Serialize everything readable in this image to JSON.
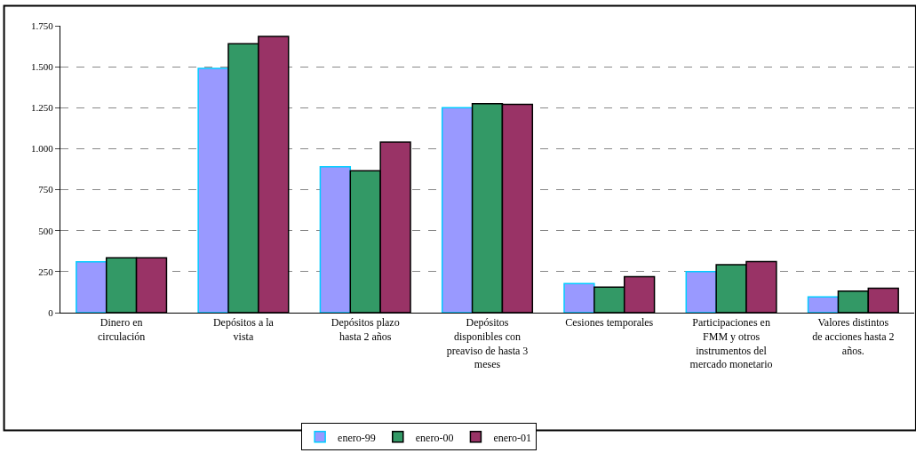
{
  "chart_data": {
    "type": "bar",
    "categories": [
      "Dinero en circulación",
      "Depósitos a la vista",
      "Depósitos plazo hasta 2 años",
      "Depósitos disponibles con preaviso de hasta 3 meses",
      "Cesiones temporales",
      "Participaciones en FMM y otros instrumentos del mercado monetario",
      "Valores distintos de acciones hasta 2 años."
    ],
    "series": [
      {
        "name": "enero-99",
        "color": "#9999ff",
        "values": [
          310,
          1490,
          890,
          1250,
          177,
          250,
          96
        ]
      },
      {
        "name": "enero-00",
        "color": "#339966",
        "values": [
          335,
          1640,
          865,
          1275,
          156,
          292,
          132
        ]
      },
      {
        "name": "enero-01",
        "color": "#993366",
        "values": [
          335,
          1685,
          1040,
          1270,
          219,
          312,
          149
        ]
      }
    ],
    "ylim": [
      0,
      1750
    ],
    "yticks": [
      0,
      {
        "value": 250,
        "label": "250"
      },
      {
        "value": 500,
        "label": "500"
      },
      {
        "value": 750,
        "label": "750"
      },
      {
        "value": 1000,
        "label": "1.000"
      },
      {
        "value": 1250,
        "label": "1.250"
      },
      {
        "value": 1500,
        "label": "1.500"
      },
      {
        "value": 1750,
        "label": "1.750"
      }
    ],
    "grid": "y",
    "legend": "bottom"
  }
}
